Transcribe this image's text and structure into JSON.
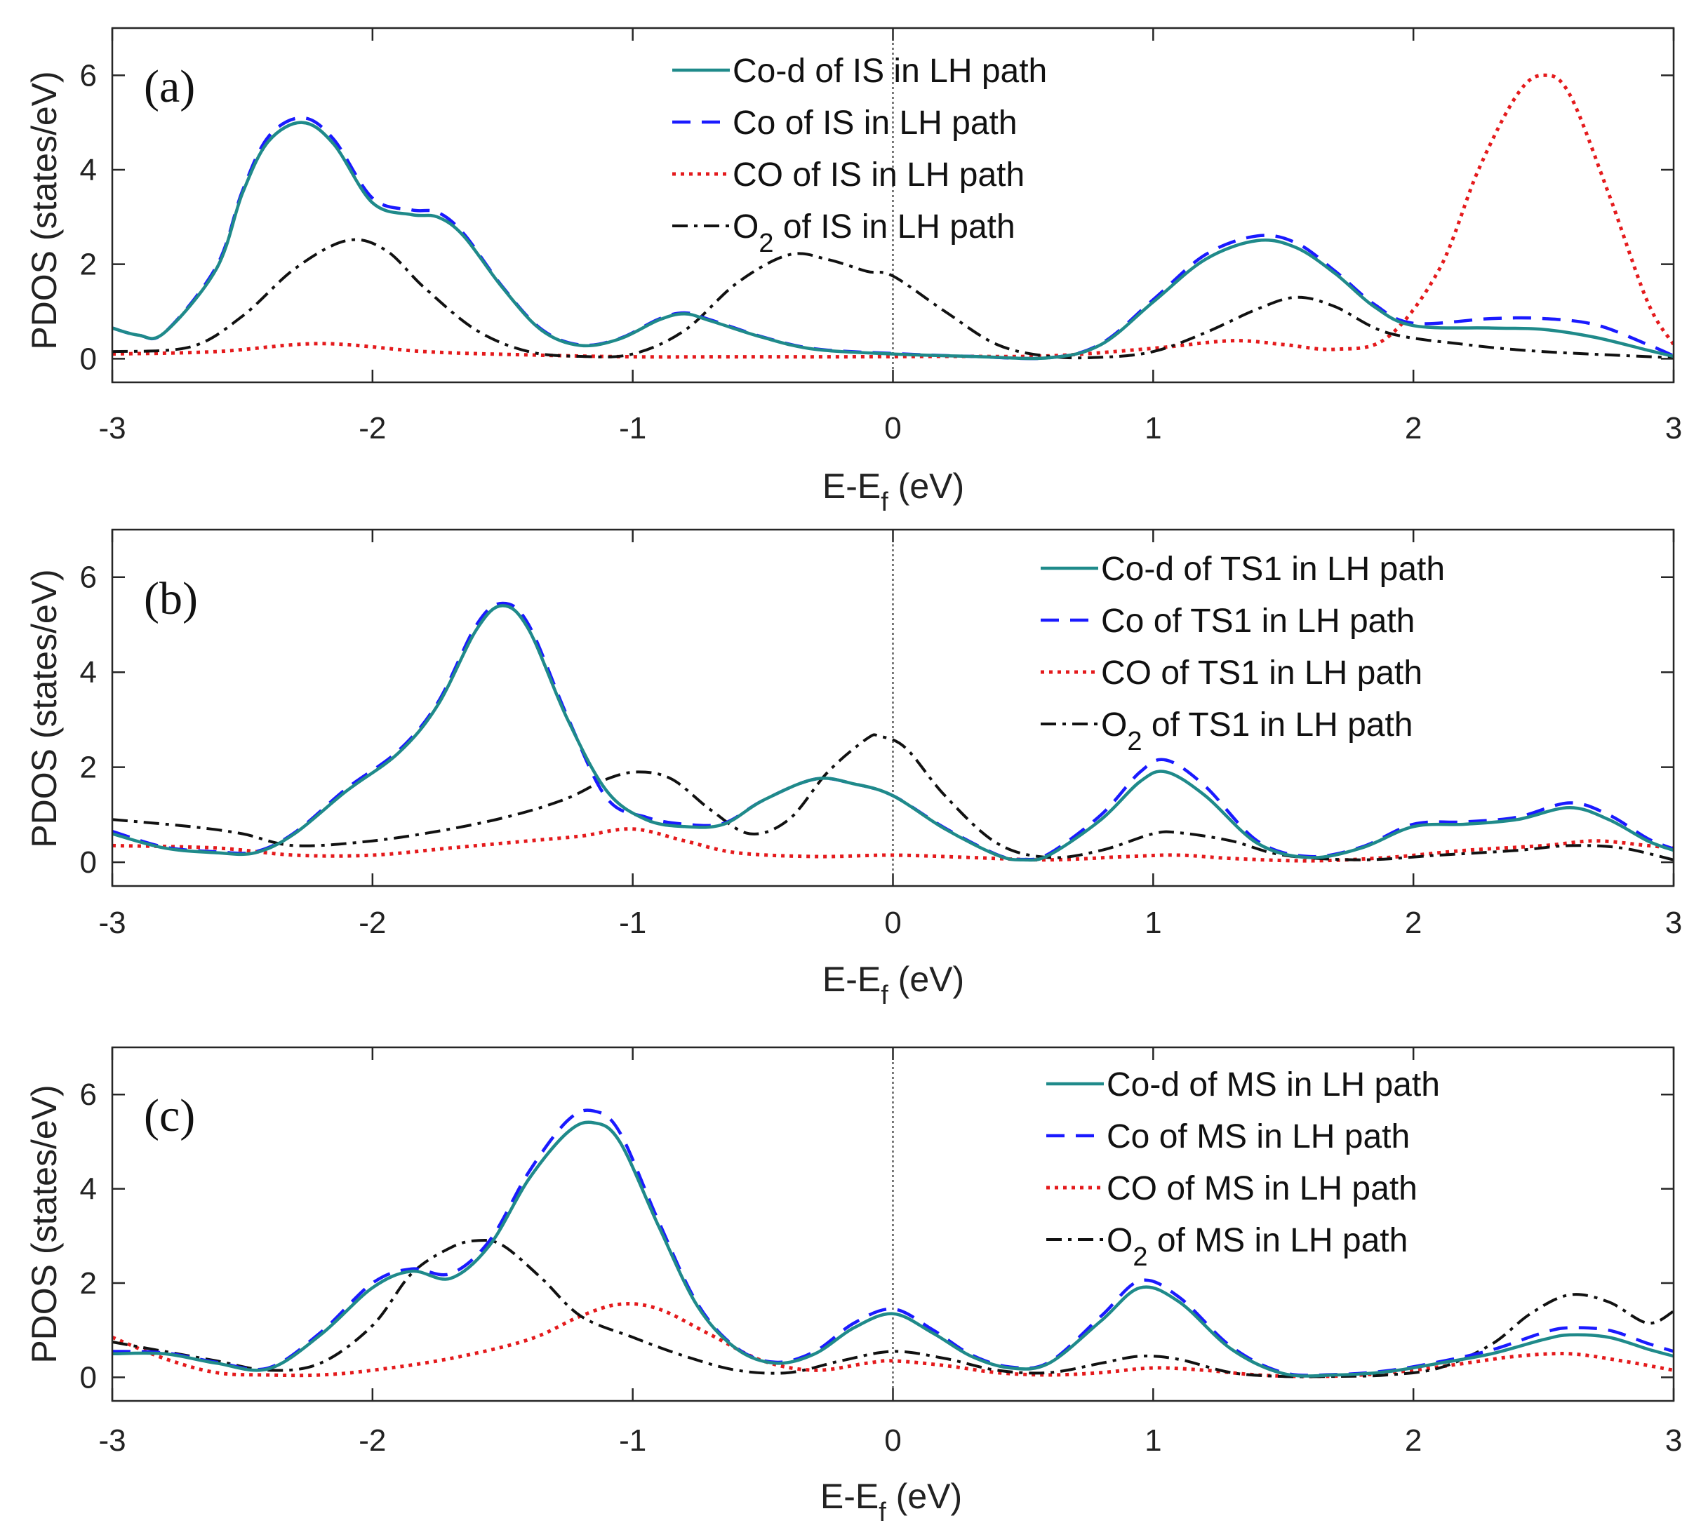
{
  "colors": {
    "co_d": "#1f8a8a",
    "co": "#1a1aff",
    "CO": "#e41a1c",
    "O2": "#111111",
    "axis": "#262626",
    "fermi": "#333333"
  },
  "chart_data": [
    {
      "type": "line",
      "panel_label": "(a)",
      "xlabel": "E-E",
      "xlabel_sub": "f",
      "xlabel_tail": " (eV)",
      "ylabel": "PDOS (states/eV)",
      "xlim": [
        -3,
        3
      ],
      "ylim": [
        -0.5,
        7
      ],
      "xticks": [
        "-3",
        "-2",
        "-1",
        "0",
        "1",
        "2",
        "3"
      ],
      "yticks": [
        "0",
        "2",
        "4",
        "6"
      ],
      "legend_position": "top-center",
      "series": [
        {
          "name": "Co-d of IS in LH path",
          "legend_main": "Co-d of IS in LH path",
          "legend_sub": "",
          "legend_tail": "",
          "style": "solid",
          "color_key": "co_d",
          "x": [
            -3.0,
            -2.9,
            -2.8,
            -2.6,
            -2.5,
            -2.4,
            -2.27,
            -2.15,
            -2.0,
            -1.85,
            -1.75,
            -1.65,
            -1.5,
            -1.35,
            -1.2,
            -1.05,
            -0.9,
            -0.8,
            -0.7,
            -0.5,
            -0.3,
            0.0,
            0.3,
            0.6,
            0.8,
            1.0,
            1.2,
            1.4,
            1.55,
            1.7,
            1.85,
            2.0,
            2.3,
            2.5,
            2.7,
            2.9,
            3.0
          ],
          "y": [
            0.65,
            0.5,
            0.55,
            1.9,
            3.5,
            4.6,
            5.0,
            4.55,
            3.3,
            3.05,
            3.0,
            2.6,
            1.5,
            0.6,
            0.28,
            0.42,
            0.82,
            0.95,
            0.8,
            0.45,
            0.2,
            0.1,
            0.05,
            0.02,
            0.3,
            1.2,
            2.1,
            2.5,
            2.35,
            1.8,
            1.1,
            0.7,
            0.65,
            0.62,
            0.45,
            0.18,
            0.05
          ]
        },
        {
          "name": "Co of IS in LH path",
          "legend_main": "Co of IS in LH path",
          "legend_sub": "",
          "legend_tail": "",
          "style": "dashed",
          "color_key": "co",
          "x": [
            -3.0,
            -2.9,
            -2.8,
            -2.6,
            -2.5,
            -2.4,
            -2.27,
            -2.15,
            -2.0,
            -1.85,
            -1.75,
            -1.65,
            -1.5,
            -1.35,
            -1.2,
            -1.05,
            -0.9,
            -0.8,
            -0.7,
            -0.5,
            -0.3,
            0.0,
            0.3,
            0.6,
            0.8,
            1.0,
            1.2,
            1.4,
            1.55,
            1.7,
            1.85,
            2.0,
            2.3,
            2.5,
            2.7,
            2.9,
            3.0
          ],
          "y": [
            0.65,
            0.5,
            0.55,
            1.95,
            3.55,
            4.7,
            5.1,
            4.65,
            3.4,
            3.15,
            3.1,
            2.65,
            1.52,
            0.62,
            0.29,
            0.43,
            0.84,
            0.97,
            0.82,
            0.46,
            0.21,
            0.11,
            0.05,
            0.02,
            0.32,
            1.25,
            2.2,
            2.6,
            2.45,
            1.85,
            1.15,
            0.75,
            0.85,
            0.85,
            0.72,
            0.3,
            0.06
          ]
        },
        {
          "name": "CO of IS in LH path",
          "legend_main": "CO of IS in LH path",
          "legend_sub": "",
          "legend_tail": "",
          "style": "dotted",
          "color_key": "CO",
          "x": [
            -3.0,
            -2.6,
            -2.2,
            -1.8,
            -1.4,
            -1.0,
            -0.6,
            -0.2,
            0.2,
            0.6,
            1.0,
            1.3,
            1.5,
            1.7,
            1.9,
            2.1,
            2.25,
            2.4,
            2.5,
            2.6,
            2.75,
            2.9,
            3.0
          ],
          "y": [
            0.1,
            0.15,
            0.32,
            0.15,
            0.08,
            0.04,
            0.04,
            0.04,
            0.05,
            0.06,
            0.22,
            0.38,
            0.3,
            0.2,
            0.45,
            1.9,
            4.0,
            5.6,
            6.0,
            5.6,
            3.5,
            1.2,
            0.3
          ]
        },
        {
          "name": "O2 of IS in LH path",
          "legend_main": "O",
          "legend_sub": "2",
          "legend_tail": " of IS in LH path",
          "style": "dashdot",
          "color_key": "O2",
          "x": [
            -3.0,
            -2.7,
            -2.5,
            -2.3,
            -2.1,
            -1.95,
            -1.8,
            -1.6,
            -1.4,
            -1.2,
            -1.0,
            -0.8,
            -0.6,
            -0.4,
            -0.25,
            -0.1,
            0.0,
            0.2,
            0.4,
            0.6,
            0.8,
            1.0,
            1.2,
            1.4,
            1.55,
            1.7,
            1.9,
            2.2,
            2.5,
            3.0
          ],
          "y": [
            0.15,
            0.25,
            0.9,
            1.9,
            2.5,
            2.3,
            1.5,
            0.6,
            0.15,
            0.05,
            0.1,
            0.6,
            1.6,
            2.2,
            2.1,
            1.85,
            1.75,
            1.0,
            0.3,
            0.05,
            0.03,
            0.15,
            0.55,
            1.05,
            1.3,
            1.1,
            0.55,
            0.3,
            0.15,
            0.02
          ]
        }
      ]
    },
    {
      "type": "line",
      "panel_label": "(b)",
      "xlabel": "E-E",
      "xlabel_sub": "f",
      "xlabel_tail": " (eV)",
      "ylabel": "PDOS (states/eV)",
      "xlim": [
        -3,
        3
      ],
      "ylim": [
        -0.5,
        7
      ],
      "xticks": [
        "-3",
        "-2",
        "-1",
        "0",
        "1",
        "2",
        "3"
      ],
      "yticks": [
        "0",
        "2",
        "4",
        "6"
      ],
      "legend_position": "top-right",
      "series": [
        {
          "name": "Co-d of TS1 in LH path",
          "legend_main": "Co-d of TS1 in LH path",
          "legend_sub": "",
          "legend_tail": "",
          "style": "solid",
          "color_key": "co_d",
          "x": [
            -3.0,
            -2.8,
            -2.6,
            -2.45,
            -2.3,
            -2.1,
            -1.9,
            -1.75,
            -1.6,
            -1.5,
            -1.4,
            -1.25,
            -1.1,
            -0.95,
            -0.8,
            -0.65,
            -0.5,
            -0.3,
            -0.15,
            0.0,
            0.2,
            0.4,
            0.5,
            0.6,
            0.8,
            0.95,
            1.05,
            1.2,
            1.4,
            1.6,
            1.8,
            2.0,
            2.2,
            2.4,
            2.6,
            2.75,
            2.9,
            3.0
          ],
          "y": [
            0.6,
            0.3,
            0.2,
            0.2,
            0.6,
            1.5,
            2.3,
            3.3,
            4.9,
            5.4,
            4.9,
            3.0,
            1.5,
            0.9,
            0.75,
            0.8,
            1.3,
            1.75,
            1.65,
            1.4,
            0.7,
            0.15,
            0.05,
            0.15,
            0.9,
            1.7,
            1.9,
            1.4,
            0.4,
            0.1,
            0.3,
            0.75,
            0.8,
            0.9,
            1.15,
            0.9,
            0.45,
            0.25
          ]
        },
        {
          "name": "Co of TS1 in LH path",
          "legend_main": "Co of TS1 in LH path",
          "legend_sub": "",
          "legend_tail": "",
          "style": "dashed",
          "color_key": "co",
          "x": [
            -3.0,
            -2.8,
            -2.6,
            -2.45,
            -2.3,
            -2.1,
            -1.9,
            -1.75,
            -1.6,
            -1.5,
            -1.4,
            -1.25,
            -1.1,
            -0.95,
            -0.8,
            -0.65,
            -0.5,
            -0.3,
            -0.15,
            0.0,
            0.2,
            0.4,
            0.5,
            0.6,
            0.8,
            0.95,
            1.05,
            1.2,
            1.4,
            1.6,
            1.8,
            2.0,
            2.2,
            2.4,
            2.6,
            2.75,
            2.9,
            3.0
          ],
          "y": [
            0.65,
            0.32,
            0.22,
            0.22,
            0.62,
            1.55,
            2.35,
            3.35,
            5.0,
            5.45,
            5.0,
            3.05,
            1.35,
            0.95,
            0.8,
            0.82,
            1.3,
            1.75,
            1.65,
            1.4,
            0.72,
            0.16,
            0.06,
            0.18,
            1.0,
            1.9,
            2.15,
            1.6,
            0.45,
            0.12,
            0.32,
            0.8,
            0.85,
            0.95,
            1.25,
            1.0,
            0.5,
            0.28
          ]
        },
        {
          "name": "CO of TS1 in LH path",
          "legend_main": "CO of TS1 in LH path",
          "legend_sub": "",
          "legend_tail": "",
          "style": "dotted",
          "color_key": "CO",
          "x": [
            -3.0,
            -2.6,
            -2.3,
            -2.0,
            -1.7,
            -1.4,
            -1.2,
            -1.0,
            -0.8,
            -0.6,
            -0.3,
            0.0,
            0.3,
            0.6,
            0.9,
            1.1,
            1.3,
            1.6,
            1.9,
            2.2,
            2.5,
            2.7,
            2.9,
            3.0
          ],
          "y": [
            0.35,
            0.3,
            0.15,
            0.15,
            0.3,
            0.45,
            0.55,
            0.7,
            0.45,
            0.2,
            0.12,
            0.15,
            0.1,
            0.05,
            0.12,
            0.15,
            0.08,
            0.03,
            0.1,
            0.25,
            0.35,
            0.45,
            0.35,
            0.3
          ]
        },
        {
          "name": "O2 of TS1 in LH path",
          "legend_main": "O",
          "legend_sub": "2",
          "legend_tail": " of TS1 in LH path",
          "style": "dashdot",
          "color_key": "O2",
          "x": [
            -3.0,
            -2.7,
            -2.5,
            -2.3,
            -2.0,
            -1.7,
            -1.45,
            -1.25,
            -1.1,
            -0.98,
            -0.85,
            -0.7,
            -0.55,
            -0.4,
            -0.25,
            -0.1,
            -0.05,
            0.05,
            0.2,
            0.4,
            0.6,
            0.8,
            1.0,
            1.1,
            1.3,
            1.5,
            1.8,
            2.1,
            2.4,
            2.6,
            2.8,
            3.0
          ],
          "y": [
            0.9,
            0.75,
            0.6,
            0.35,
            0.45,
            0.7,
            1.0,
            1.35,
            1.75,
            1.9,
            1.75,
            1.1,
            0.6,
            0.9,
            1.9,
            2.6,
            2.65,
            2.4,
            1.4,
            0.4,
            0.1,
            0.25,
            0.6,
            0.62,
            0.45,
            0.15,
            0.05,
            0.15,
            0.25,
            0.35,
            0.3,
            0.05
          ]
        }
      ]
    },
    {
      "type": "line",
      "panel_label": "(c)",
      "xlabel": "E-E",
      "xlabel_sub": "f",
      "xlabel_tail": " (eV)",
      "ylabel": "PDOS (states/eV)",
      "xlim": [
        -3,
        3
      ],
      "ylim": [
        -0.5,
        7
      ],
      "xticks": [
        "-3",
        "-2",
        "-1",
        "0",
        "1",
        "2",
        "3"
      ],
      "yticks": [
        "0",
        "2",
        "4",
        "6"
      ],
      "legend_position": "top-right",
      "series": [
        {
          "name": "Co-d of MS in LH path",
          "legend_main": "Co-d of MS in LH path",
          "legend_sub": "",
          "legend_tail": "",
          "style": "solid",
          "color_key": "co_d",
          "x": [
            -3.0,
            -2.8,
            -2.6,
            -2.4,
            -2.2,
            -2.0,
            -1.85,
            -1.7,
            -1.55,
            -1.4,
            -1.25,
            -1.15,
            -1.05,
            -0.9,
            -0.75,
            -0.6,
            -0.45,
            -0.3,
            -0.15,
            0.0,
            0.15,
            0.3,
            0.45,
            0.6,
            0.8,
            0.95,
            1.1,
            1.3,
            1.5,
            1.7,
            1.9,
            2.1,
            2.3,
            2.5,
            2.6,
            2.75,
            2.9,
            3.0
          ],
          "y": [
            0.5,
            0.5,
            0.3,
            0.18,
            0.9,
            1.9,
            2.25,
            2.1,
            2.8,
            4.2,
            5.2,
            5.4,
            5.0,
            3.2,
            1.5,
            0.6,
            0.3,
            0.5,
            1.05,
            1.35,
            0.95,
            0.45,
            0.2,
            0.3,
            1.2,
            1.9,
            1.6,
            0.6,
            0.08,
            0.05,
            0.12,
            0.3,
            0.5,
            0.8,
            0.9,
            0.85,
            0.6,
            0.45
          ]
        },
        {
          "name": "Co of MS in LH path",
          "legend_main": "Co of MS in LH path",
          "legend_sub": "",
          "legend_tail": "",
          "style": "dashed",
          "color_key": "co",
          "x": [
            -3.0,
            -2.8,
            -2.6,
            -2.4,
            -2.2,
            -2.0,
            -1.85,
            -1.7,
            -1.55,
            -1.4,
            -1.25,
            -1.15,
            -1.05,
            -0.9,
            -0.75,
            -0.6,
            -0.45,
            -0.3,
            -0.15,
            0.0,
            0.15,
            0.3,
            0.45,
            0.6,
            0.8,
            0.95,
            1.1,
            1.3,
            1.5,
            1.7,
            1.9,
            2.1,
            2.3,
            2.5,
            2.6,
            2.75,
            2.9,
            3.0
          ],
          "y": [
            0.55,
            0.52,
            0.32,
            0.2,
            0.95,
            2.0,
            2.3,
            2.2,
            2.9,
            4.35,
            5.45,
            5.65,
            5.2,
            3.3,
            1.55,
            0.62,
            0.32,
            0.55,
            1.15,
            1.45,
            1.02,
            0.48,
            0.22,
            0.32,
            1.3,
            2.05,
            1.7,
            0.65,
            0.1,
            0.06,
            0.14,
            0.33,
            0.58,
            0.95,
            1.05,
            1.0,
            0.72,
            0.55
          ]
        },
        {
          "name": "CO of MS in LH path",
          "legend_main": "CO of MS in LH path",
          "legend_sub": "",
          "legend_tail": "",
          "style": "dotted",
          "color_key": "CO",
          "x": [
            -3.0,
            -2.8,
            -2.6,
            -2.4,
            -2.2,
            -2.0,
            -1.7,
            -1.4,
            -1.2,
            -1.05,
            -0.9,
            -0.7,
            -0.5,
            -0.3,
            -0.1,
            0.0,
            0.2,
            0.4,
            0.6,
            0.8,
            1.0,
            1.2,
            1.4,
            1.6,
            1.8,
            2.0,
            2.2,
            2.4,
            2.6,
            2.8,
            3.0
          ],
          "y": [
            0.85,
            0.4,
            0.1,
            0.05,
            0.05,
            0.15,
            0.4,
            0.8,
            1.3,
            1.55,
            1.45,
            0.9,
            0.35,
            0.15,
            0.3,
            0.35,
            0.25,
            0.1,
            0.05,
            0.1,
            0.2,
            0.15,
            0.05,
            0.02,
            0.05,
            0.15,
            0.3,
            0.45,
            0.5,
            0.35,
            0.15
          ]
        },
        {
          "name": "O2 of MS in LH path",
          "legend_main": "O",
          "legend_sub": "2",
          "legend_tail": " of MS in LH path",
          "style": "dashdot",
          "color_key": "O2",
          "x": [
            -3.0,
            -2.8,
            -2.6,
            -2.4,
            -2.2,
            -2.0,
            -1.85,
            -1.7,
            -1.6,
            -1.5,
            -1.35,
            -1.2,
            -1.0,
            -0.8,
            -0.6,
            -0.4,
            -0.2,
            0.0,
            0.2,
            0.4,
            0.6,
            0.8,
            0.95,
            1.1,
            1.3,
            1.5,
            1.7,
            1.9,
            2.1,
            2.3,
            2.45,
            2.6,
            2.75,
            2.9,
            3.0
          ],
          "y": [
            0.75,
            0.55,
            0.35,
            0.15,
            0.3,
            1.1,
            2.2,
            2.75,
            2.9,
            2.8,
            2.1,
            1.3,
            0.85,
            0.45,
            0.15,
            0.1,
            0.35,
            0.55,
            0.4,
            0.15,
            0.1,
            0.3,
            0.45,
            0.38,
            0.1,
            0.02,
            0.02,
            0.05,
            0.2,
            0.7,
            1.35,
            1.75,
            1.6,
            1.15,
            1.4
          ]
        }
      ]
    }
  ]
}
